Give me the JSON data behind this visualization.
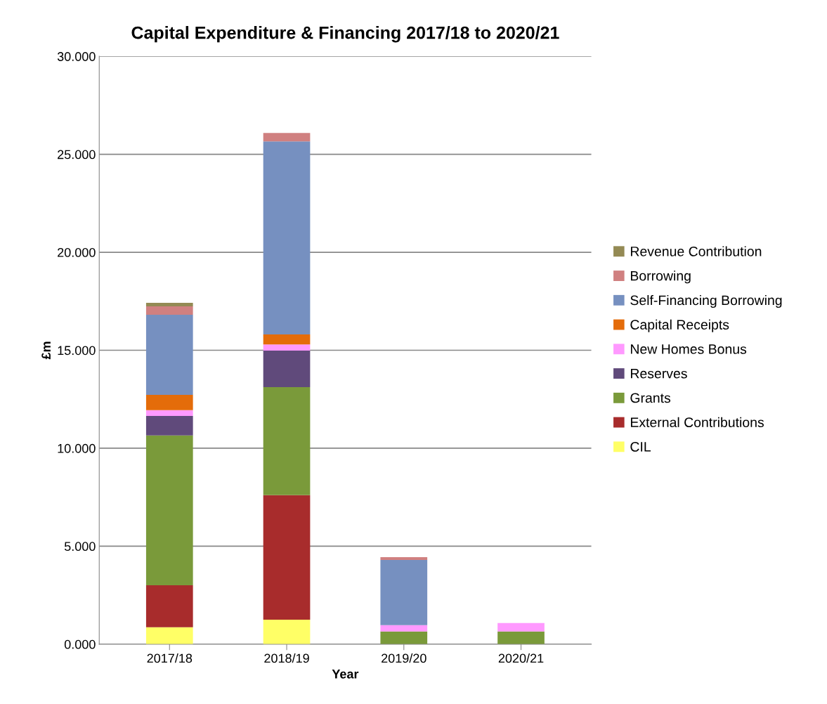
{
  "chart_data": {
    "type": "bar",
    "title": "Capital Expenditure & Financing 2017/18 to 2020/21",
    "xlabel": "Year",
    "ylabel": "£m",
    "categories": [
      "2017/18",
      "2018/19",
      "2019/20",
      "2020/21"
    ],
    "stacked": true,
    "series": [
      {
        "name": "CIL",
        "color": "#ffff66",
        "values": [
          0.86,
          1.25,
          0,
          0
        ]
      },
      {
        "name": "External Contributions",
        "color": "#a82c2c",
        "values": [
          2.15,
          6.35,
          0,
          0
        ]
      },
      {
        "name": "Grants",
        "color": "#7a9a3a",
        "values": [
          7.64,
          5.52,
          0.65,
          0.65
        ]
      },
      {
        "name": "Reserves",
        "color": "#604a7b",
        "values": [
          1.0,
          1.86,
          0,
          0
        ]
      },
      {
        "name": "New Homes Bonus",
        "color": "#ff99ff",
        "values": [
          0.29,
          0.32,
          0.32,
          0.43
        ]
      },
      {
        "name": "Capital Receipts",
        "color": "#e46c0a",
        "values": [
          0.78,
          0.51,
          0,
          0
        ]
      },
      {
        "name": "Self-Financing Borrowing",
        "color": "#7690c0",
        "values": [
          4.09,
          9.85,
          3.33,
          0
        ]
      },
      {
        "name": "Borrowing",
        "color": "#d08080",
        "values": [
          0.43,
          0.43,
          0.14,
          0
        ]
      },
      {
        "name": "Revenue Contribution",
        "color": "#948a54",
        "values": [
          0.18,
          0,
          0,
          0
        ]
      }
    ],
    "ylim": [
      0,
      30
    ],
    "yticks": [
      {
        "value": 0,
        "label": "0.000"
      },
      {
        "value": 5,
        "label": "5.000"
      },
      {
        "value": 10,
        "label": "10.000"
      },
      {
        "value": 15,
        "label": "15.000"
      },
      {
        "value": 20,
        "label": "20.000"
      },
      {
        "value": 25,
        "label": "25.000"
      },
      {
        "value": 30,
        "label": "30.000"
      }
    ],
    "grid": "y",
    "legend": "right"
  }
}
